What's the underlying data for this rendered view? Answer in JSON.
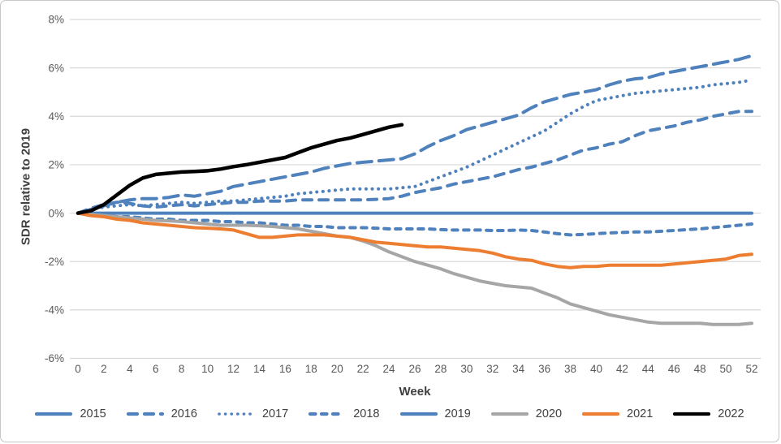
{
  "chart_data": {
    "type": "line",
    "title": "",
    "xlabel": "Week",
    "ylabel": "SDR relative to 2019",
    "x_unit": "week",
    "xlim": [
      0,
      52
    ],
    "ylim": [
      -6,
      8
    ],
    "x_tick_labels": [
      "0",
      "2",
      "4",
      "6",
      "8",
      "10",
      "12",
      "14",
      "16",
      "18",
      "20",
      "22",
      "24",
      "26",
      "28",
      "30",
      "32",
      "34",
      "36",
      "38",
      "40",
      "42",
      "44",
      "46",
      "48",
      "50",
      "52"
    ],
    "x_tick_values": [
      0,
      2,
      4,
      6,
      8,
      10,
      12,
      14,
      16,
      18,
      20,
      22,
      24,
      26,
      28,
      30,
      32,
      34,
      36,
      38,
      40,
      42,
      44,
      46,
      48,
      50,
      52
    ],
    "y_tick_labels": [
      "8%",
      "6%",
      "4%",
      "2%",
      "0%",
      "-2%",
      "-4%",
      "-6%"
    ],
    "y_tick_values": [
      8,
      6,
      4,
      2,
      0,
      -2,
      -4,
      -6
    ],
    "grid": true,
    "legend_position": "bottom",
    "colors": {
      "blue": "#4f81bd",
      "gray": "#a6a6a6",
      "orange": "#ed7d31",
      "black": "#000000",
      "gridline": "#d9d9d9",
      "tick_text": "#595959",
      "title_text": "#404040"
    },
    "series": [
      {
        "name": "2015",
        "color": "#4f81bd",
        "style": "long-dash",
        "x_start": 0,
        "x_step": 1,
        "values": [
          0,
          0.15,
          0.3,
          0.45,
          0.55,
          0.6,
          0.6,
          0.65,
          0.75,
          0.7,
          0.8,
          0.9,
          1.1,
          1.2,
          1.3,
          1.4,
          1.5,
          1.6,
          1.7,
          1.85,
          1.95,
          2.05,
          2.1,
          2.15,
          2.2,
          2.25,
          2.45,
          2.75,
          3.0,
          3.2,
          3.45,
          3.6,
          3.75,
          3.9,
          4.05,
          4.35,
          4.6,
          4.75,
          4.9,
          5.0,
          5.1,
          5.3,
          5.45,
          5.55,
          5.6,
          5.75,
          5.85,
          5.95,
          6.05,
          6.15,
          6.25,
          6.35,
          6.5
        ]
      },
      {
        "name": "2016",
        "color": "#4f81bd",
        "style": "dash",
        "x_start": 0,
        "x_step": 1,
        "values": [
          0,
          0.2,
          0.35,
          0.45,
          0.4,
          0.3,
          0.25,
          0.3,
          0.35,
          0.3,
          0.35,
          0.4,
          0.45,
          0.45,
          0.5,
          0.5,
          0.5,
          0.55,
          0.55,
          0.55,
          0.55,
          0.55,
          0.55,
          0.57,
          0.6,
          0.7,
          0.85,
          0.95,
          1.05,
          1.2,
          1.3,
          1.4,
          1.5,
          1.65,
          1.8,
          1.9,
          2.05,
          2.2,
          2.4,
          2.6,
          2.7,
          2.85,
          2.95,
          3.2,
          3.4,
          3.5,
          3.6,
          3.75,
          3.85,
          4.0,
          4.1,
          4.2,
          4.2
        ]
      },
      {
        "name": "2017",
        "color": "#4f81bd",
        "style": "dot",
        "x_start": 0,
        "x_step": 1,
        "values": [
          0,
          0.15,
          0.25,
          0.3,
          0.35,
          0.3,
          0.35,
          0.4,
          0.45,
          0.4,
          0.45,
          0.5,
          0.5,
          0.55,
          0.6,
          0.65,
          0.7,
          0.8,
          0.85,
          0.9,
          0.95,
          1.0,
          1.0,
          1.0,
          1.0,
          1.05,
          1.1,
          1.3,
          1.5,
          1.7,
          1.9,
          2.15,
          2.4,
          2.65,
          2.9,
          3.15,
          3.4,
          3.75,
          4.1,
          4.4,
          4.65,
          4.75,
          4.85,
          4.95,
          5.0,
          5.05,
          5.1,
          5.15,
          5.2,
          5.3,
          5.35,
          5.4,
          5.5
        ]
      },
      {
        "name": "2018",
        "color": "#4f81bd",
        "style": "short-dash",
        "x_start": 0,
        "x_step": 1,
        "values": [
          0,
          -0.05,
          -0.1,
          -0.15,
          -0.15,
          -0.2,
          -0.25,
          -0.25,
          -0.3,
          -0.3,
          -0.3,
          -0.35,
          -0.35,
          -0.4,
          -0.4,
          -0.45,
          -0.5,
          -0.5,
          -0.55,
          -0.55,
          -0.6,
          -0.6,
          -0.6,
          -0.62,
          -0.65,
          -0.65,
          -0.65,
          -0.65,
          -0.68,
          -0.7,
          -0.7,
          -0.7,
          -0.72,
          -0.72,
          -0.7,
          -0.72,
          -0.78,
          -0.85,
          -0.9,
          -0.88,
          -0.85,
          -0.82,
          -0.8,
          -0.78,
          -0.78,
          -0.75,
          -0.72,
          -0.68,
          -0.65,
          -0.6,
          -0.55,
          -0.5,
          -0.45
        ]
      },
      {
        "name": "2019",
        "color": "#4f81bd",
        "style": "solid",
        "x_start": 0,
        "x_step": 1,
        "values": [
          0,
          0,
          0,
          0,
          0,
          0,
          0,
          0,
          0,
          0,
          0,
          0,
          0,
          0,
          0,
          0,
          0,
          0,
          0,
          0,
          0,
          0,
          0,
          0,
          0,
          0,
          0,
          0,
          0,
          0,
          0,
          0,
          0,
          0,
          0,
          0,
          0,
          0,
          0,
          0,
          0,
          0,
          0,
          0,
          0,
          0,
          0,
          0,
          0,
          0,
          0,
          0,
          0
        ]
      },
      {
        "name": "2020",
        "color": "#a6a6a6",
        "style": "solid",
        "x_start": 0,
        "x_step": 1,
        "values": [
          0,
          -0.05,
          -0.1,
          -0.15,
          -0.2,
          -0.25,
          -0.3,
          -0.32,
          -0.35,
          -0.4,
          -0.45,
          -0.5,
          -0.5,
          -0.5,
          -0.52,
          -0.55,
          -0.6,
          -0.65,
          -0.75,
          -0.85,
          -0.95,
          -1.0,
          -1.15,
          -1.35,
          -1.6,
          -1.8,
          -2.0,
          -2.15,
          -2.3,
          -2.5,
          -2.65,
          -2.8,
          -2.9,
          -3.0,
          -3.05,
          -3.1,
          -3.3,
          -3.5,
          -3.75,
          -3.9,
          -4.05,
          -4.2,
          -4.3,
          -4.4,
          -4.5,
          -4.55,
          -4.55,
          -4.55,
          -4.55,
          -4.6,
          -4.6,
          -4.6,
          -4.55
        ]
      },
      {
        "name": "2021",
        "color": "#ed7d31",
        "style": "solid",
        "x_start": 0,
        "x_step": 1,
        "values": [
          0,
          -0.1,
          -0.15,
          -0.25,
          -0.3,
          -0.4,
          -0.45,
          -0.5,
          -0.55,
          -0.6,
          -0.62,
          -0.65,
          -0.7,
          -0.85,
          -1.0,
          -1.0,
          -0.95,
          -0.9,
          -0.9,
          -0.9,
          -0.95,
          -1.0,
          -1.1,
          -1.2,
          -1.25,
          -1.3,
          -1.35,
          -1.4,
          -1.4,
          -1.45,
          -1.5,
          -1.55,
          -1.65,
          -1.8,
          -1.9,
          -1.95,
          -2.1,
          -2.2,
          -2.25,
          -2.2,
          -2.2,
          -2.15,
          -2.15,
          -2.15,
          -2.15,
          -2.15,
          -2.1,
          -2.05,
          -2.0,
          -1.95,
          -1.9,
          -1.75,
          -1.7
        ]
      },
      {
        "name": "2022",
        "color": "#000000",
        "style": "solid",
        "x_start": 0,
        "x_step": 1,
        "values": [
          0,
          0.1,
          0.35,
          0.75,
          1.15,
          1.45,
          1.6,
          1.65,
          1.7,
          1.72,
          1.75,
          1.82,
          1.92,
          2.0,
          2.1,
          2.2,
          2.3,
          2.5,
          2.7,
          2.85,
          3.0,
          3.1,
          3.25,
          3.4,
          3.55,
          3.65
        ]
      }
    ]
  }
}
